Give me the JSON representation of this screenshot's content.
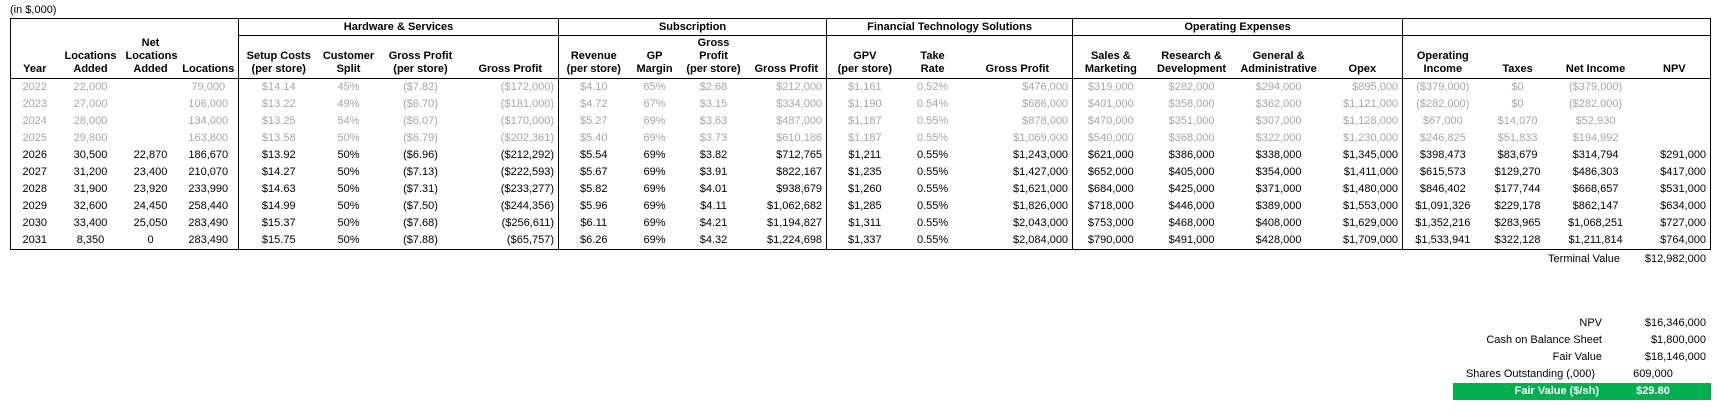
{
  "meta": {
    "units_label": "(in $,000)"
  },
  "colors": {
    "highlight_green": "#00B050",
    "muted_text": "#A6A6A6"
  },
  "table": {
    "groups": [
      {
        "label": "",
        "span": 4,
        "boxed": false
      },
      {
        "label": "Hardware & Services",
        "span": 4,
        "boxed": true
      },
      {
        "label": "Subscription",
        "span": 4,
        "boxed": true
      },
      {
        "label": "Financial Technology Solutions",
        "span": 3,
        "boxed": true
      },
      {
        "label": "Operating Expenses",
        "span": 4,
        "boxed": true
      },
      {
        "label": "",
        "span": 4,
        "boxed": true
      }
    ],
    "columns": [
      "Year",
      "Locations\nAdded",
      "Net\nLocations\nAdded",
      "Locations",
      "Setup Costs\n(per store)",
      "Customer\nSplit",
      "Gross Profit\n(per store)",
      "Gross Profit",
      "Revenue\n(per store)",
      "GP\nMargin",
      "Gross Profit\n(per store)",
      "Gross Profit",
      "GPV\n(per store)",
      "Take\nRate",
      "Gross Profit",
      "Sales &\nMarketing",
      "Research &\nDevelopment",
      "General &\nAdministrative",
      "Opex",
      "Operating\nIncome",
      "Taxes",
      "Net Income",
      "NPV"
    ],
    "rows": [
      {
        "muted": true,
        "cells": [
          "2022",
          "22,000",
          "",
          "79,000",
          "$14.14",
          "45%",
          "($7.82)",
          "($172,000)",
          "$4.10",
          "65%",
          "$2.68",
          "$212,000",
          "$1,161",
          "0.52%",
          "$476,000",
          "$319,000",
          "$282,000",
          "$294,000",
          "$895,000",
          "($379,000)",
          "$0",
          "($379,000)",
          ""
        ]
      },
      {
        "muted": true,
        "cells": [
          "2023",
          "27,000",
          "",
          "106,000",
          "$13.22",
          "49%",
          "($6.70)",
          "($181,000)",
          "$4.72",
          "67%",
          "$3.15",
          "$334,000",
          "$1,190",
          "0.54%",
          "$686,000",
          "$401,000",
          "$358,000",
          "$362,000",
          "$1,121,000",
          "($282,000)",
          "$0",
          "($282,000)",
          ""
        ]
      },
      {
        "muted": true,
        "cells": [
          "2024",
          "28,000",
          "",
          "134,000",
          "$13.25",
          "54%",
          "($6.07)",
          "($170,000)",
          "$5.27",
          "69%",
          "$3.63",
          "$487,000",
          "$1,187",
          "0.55%",
          "$878,000",
          "$470,000",
          "$351,000",
          "$307,000",
          "$1,128,000",
          "$67,000",
          "$14,070",
          "$52,930",
          ""
        ]
      },
      {
        "muted": true,
        "cells": [
          "2025",
          "29,800",
          "",
          "163,800",
          "$13.58",
          "50%",
          "($6.79)",
          "($202,361)",
          "$5.40",
          "69%",
          "$3.73",
          "$610,186",
          "$1,187",
          "0.55%",
          "$1,069,000",
          "$540,000",
          "$368,000",
          "$322,000",
          "$1,230,000",
          "$246,825",
          "$51,833",
          "$194,992",
          ""
        ]
      },
      {
        "muted": false,
        "cells": [
          "2026",
          "30,500",
          "22,870",
          "186,670",
          "$13.92",
          "50%",
          "($6.96)",
          "($212,292)",
          "$5.54",
          "69%",
          "$3.82",
          "$712,765",
          "$1,211",
          "0.55%",
          "$1,243,000",
          "$621,000",
          "$386,000",
          "$338,000",
          "$1,345,000",
          "$398,473",
          "$83,679",
          "$314,794",
          "$291,000"
        ]
      },
      {
        "muted": false,
        "cells": [
          "2027",
          "31,200",
          "23,400",
          "210,070",
          "$14.27",
          "50%",
          "($7.13)",
          "($222,593)",
          "$5.67",
          "69%",
          "$3.91",
          "$822,167",
          "$1,235",
          "0.55%",
          "$1,427,000",
          "$652,000",
          "$405,000",
          "$354,000",
          "$1,411,000",
          "$615,573",
          "$129,270",
          "$486,303",
          "$417,000"
        ]
      },
      {
        "muted": false,
        "cells": [
          "2028",
          "31,900",
          "23,920",
          "233,990",
          "$14.63",
          "50%",
          "($7.31)",
          "($233,277)",
          "$5.82",
          "69%",
          "$4.01",
          "$938,679",
          "$1,260",
          "0.55%",
          "$1,621,000",
          "$684,000",
          "$425,000",
          "$371,000",
          "$1,480,000",
          "$846,402",
          "$177,744",
          "$668,657",
          "$531,000"
        ]
      },
      {
        "muted": false,
        "cells": [
          "2029",
          "32,600",
          "24,450",
          "258,440",
          "$14.99",
          "50%",
          "($7.50)",
          "($244,356)",
          "$5.96",
          "69%",
          "$4.11",
          "$1,062,682",
          "$1,285",
          "0.55%",
          "$1,826,000",
          "$718,000",
          "$446,000",
          "$389,000",
          "$1,553,000",
          "$1,091,326",
          "$229,178",
          "$862,147",
          "$634,000"
        ]
      },
      {
        "muted": false,
        "cells": [
          "2030",
          "33,400",
          "25,050",
          "283,490",
          "$15.37",
          "50%",
          "($7.68)",
          "($256,611)",
          "$6.11",
          "69%",
          "$4.21",
          "$1,194,827",
          "$1,311",
          "0.55%",
          "$2,043,000",
          "$753,000",
          "$468,000",
          "$408,000",
          "$1,629,000",
          "$1,352,216",
          "$283,965",
          "$1,068,251",
          "$727,000"
        ]
      },
      {
        "muted": false,
        "cells": [
          "2031",
          "8,350",
          "0",
          "283,490",
          "$15.75",
          "50%",
          "($7.88)",
          "($65,757)",
          "$6.26",
          "69%",
          "$4.32",
          "$1,224,698",
          "$1,337",
          "0.55%",
          "$2,084,000",
          "$790,000",
          "$491,000",
          "$428,000",
          "$1,709,000",
          "$1,533,941",
          "$322,128",
          "$1,211,814",
          "$764,000"
        ]
      }
    ]
  },
  "terminal_value": {
    "label": "Terminal Value",
    "value": "$12,982,000"
  },
  "summary": {
    "rows": [
      {
        "label": "NPV",
        "value": "$16,346,000",
        "highlight": false,
        "value_center": false
      },
      {
        "label": "Cash on Balance Sheet",
        "value": "$1,800,000",
        "highlight": false,
        "value_center": false
      },
      {
        "label": "Fair Value",
        "value": "$18,146,000",
        "highlight": false,
        "value_center": false
      },
      {
        "label": "Shares Outstanding (,000)",
        "value": "609,000",
        "highlight": false,
        "value_center": true
      },
      {
        "label": "Fair Value ($/sh)",
        "value": "$29.80",
        "highlight": true,
        "value_center": true
      }
    ]
  }
}
